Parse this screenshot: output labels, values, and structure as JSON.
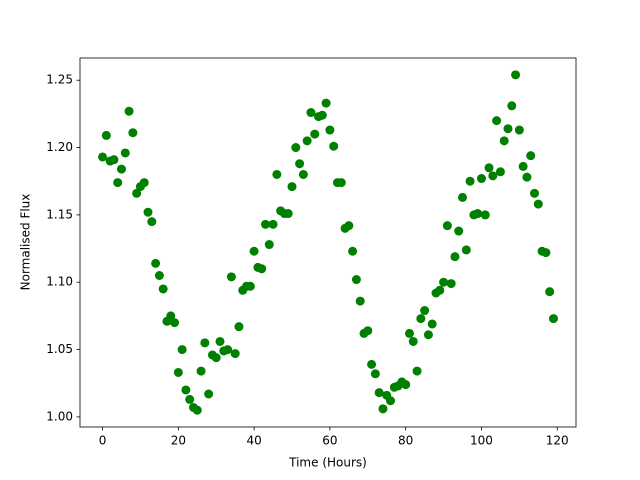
{
  "chart_data": {
    "type": "scatter",
    "xlabel": "Time (Hours)",
    "ylabel": "Normalised Flux",
    "color": "#008000",
    "x": [
      0,
      1,
      2,
      3,
      4,
      5,
      6,
      7,
      8,
      9,
      10,
      11,
      12,
      13,
      14,
      15,
      16,
      17,
      18,
      19,
      20,
      21,
      22,
      23,
      24,
      25,
      26,
      27,
      28,
      29,
      30,
      31,
      32,
      33,
      34,
      35,
      36,
      37,
      38,
      39,
      40,
      41,
      42,
      43,
      44,
      45,
      46,
      47,
      48,
      49,
      50,
      51,
      52,
      53,
      54,
      55,
      56,
      57,
      58,
      59,
      60,
      61,
      62,
      63,
      64,
      65,
      66,
      67,
      68,
      69,
      70,
      71,
      72,
      73,
      74,
      75,
      76,
      77,
      78,
      79,
      80,
      81,
      82,
      83,
      84,
      85,
      86,
      87,
      88,
      89,
      90,
      91,
      92,
      93,
      94,
      95,
      96,
      97,
      98,
      99,
      100,
      101,
      102,
      103,
      104,
      105,
      106,
      107,
      108,
      109,
      110,
      111,
      112,
      113,
      114,
      115,
      116,
      117,
      118,
      119
    ],
    "values": [
      1.193,
      1.209,
      1.19,
      1.191,
      1.174,
      1.184,
      1.196,
      1.227,
      1.211,
      1.166,
      1.171,
      1.174,
      1.152,
      1.145,
      1.114,
      1.105,
      1.095,
      1.071,
      1.075,
      1.07,
      1.033,
      1.05,
      1.02,
      1.013,
      1.007,
      1.005,
      1.034,
      1.055,
      1.017,
      1.046,
      1.044,
      1.056,
      1.049,
      1.05,
      1.104,
      1.047,
      1.067,
      1.094,
      1.097,
      1.097,
      1.123,
      1.111,
      1.11,
      1.143,
      1.128,
      1.143,
      1.18,
      1.153,
      1.151,
      1.151,
      1.171,
      1.2,
      1.188,
      1.18,
      1.205,
      1.226,
      1.21,
      1.223,
      1.224,
      1.233,
      1.213,
      1.201,
      1.174,
      1.174,
      1.14,
      1.142,
      1.123,
      1.102,
      1.086,
      1.062,
      1.064,
      1.039,
      1.032,
      1.018,
      1.006,
      1.016,
      1.012,
      1.022,
      1.023,
      1.026,
      1.024,
      1.062,
      1.056,
      1.034,
      1.073,
      1.079,
      1.061,
      1.069,
      1.092,
      1.094,
      1.1,
      1.142,
      1.099,
      1.119,
      1.138,
      1.163,
      1.124,
      1.175,
      1.15,
      1.151,
      1.177,
      1.15,
      1.185,
      1.179,
      1.22,
      1.182,
      1.205,
      1.214,
      1.231,
      1.254,
      1.213,
      1.186,
      1.178,
      1.194,
      1.166,
      1.158,
      1.123,
      1.122,
      1.093,
      1.073
    ],
    "xlim": [
      -5.95,
      124.95
    ],
    "ylim": [
      0.9925,
      1.2665
    ],
    "xticks": [
      0,
      20,
      40,
      60,
      80,
      100,
      120
    ],
    "yticks": [
      {
        "value": 1.0,
        "label": "1.00"
      },
      {
        "value": 1.05,
        "label": "1.05"
      },
      {
        "value": 1.1,
        "label": "1.10"
      },
      {
        "value": 1.15,
        "label": "1.15"
      },
      {
        "value": 1.2,
        "label": "1.20"
      },
      {
        "value": 1.25,
        "label": "1.25"
      }
    ]
  }
}
